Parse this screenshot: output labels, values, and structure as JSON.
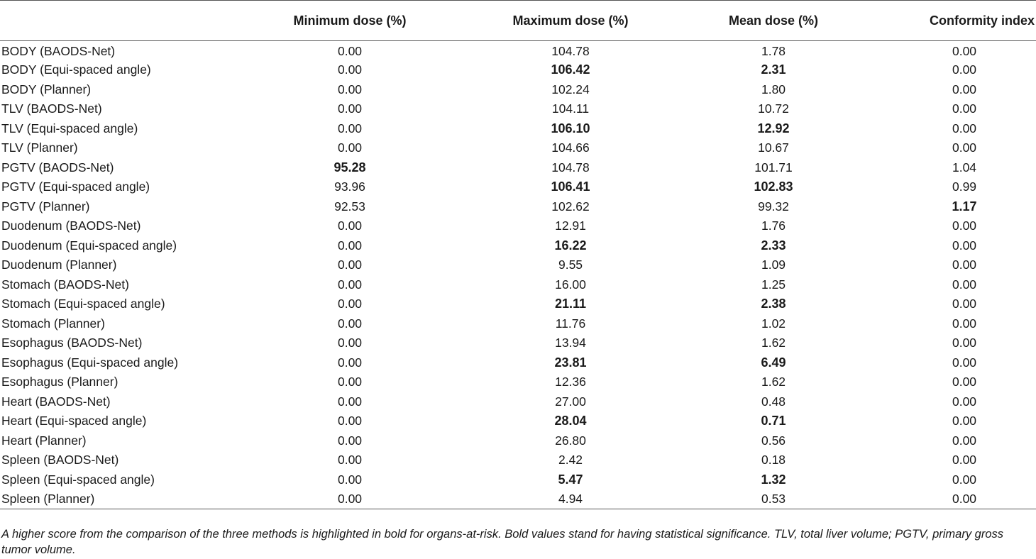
{
  "table": {
    "headers": [
      "",
      "Minimum dose (%)",
      "Maximum dose (%)",
      "Mean dose (%)",
      "Conformity index"
    ],
    "rows": [
      {
        "name": "BODY (BAODS-Net)",
        "min": "0.00",
        "max": "104.78",
        "mean": "1.78",
        "ci": "0.00",
        "bold": []
      },
      {
        "name": "BODY (Equi-spaced angle)",
        "min": "0.00",
        "max": "106.42",
        "mean": "2.31",
        "ci": "0.00",
        "bold": [
          "max",
          "mean"
        ]
      },
      {
        "name": "BODY (Planner)",
        "min": "0.00",
        "max": "102.24",
        "mean": "1.80",
        "ci": "0.00",
        "bold": []
      },
      {
        "name": "TLV (BAODS-Net)",
        "min": "0.00",
        "max": "104.11",
        "mean": "10.72",
        "ci": "0.00",
        "bold": []
      },
      {
        "name": "TLV (Equi-spaced angle)",
        "min": "0.00",
        "max": "106.10",
        "mean": "12.92",
        "ci": "0.00",
        "bold": [
          "max",
          "mean"
        ]
      },
      {
        "name": "TLV (Planner)",
        "min": "0.00",
        "max": "104.66",
        "mean": "10.67",
        "ci": "0.00",
        "bold": []
      },
      {
        "name": "PGTV (BAODS-Net)",
        "min": "95.28",
        "max": "104.78",
        "mean": "101.71",
        "ci": "1.04",
        "bold": [
          "min"
        ]
      },
      {
        "name": "PGTV (Equi-spaced angle)",
        "min": "93.96",
        "max": "106.41",
        "mean": "102.83",
        "ci": "0.99",
        "bold": [
          "max",
          "mean"
        ]
      },
      {
        "name": "PGTV (Planner)",
        "min": "92.53",
        "max": "102.62",
        "mean": "99.32",
        "ci": "1.17",
        "bold": [
          "ci"
        ]
      },
      {
        "name": "Duodenum (BAODS-Net)",
        "min": "0.00",
        "max": "12.91",
        "mean": "1.76",
        "ci": "0.00",
        "bold": []
      },
      {
        "name": "Duodenum (Equi-spaced angle)",
        "min": "0.00",
        "max": "16.22",
        "mean": "2.33",
        "ci": "0.00",
        "bold": [
          "max",
          "mean"
        ]
      },
      {
        "name": "Duodenum (Planner)",
        "min": "0.00",
        "max": "9.55",
        "mean": "1.09",
        "ci": "0.00",
        "bold": []
      },
      {
        "name": "Stomach (BAODS-Net)",
        "min": "0.00",
        "max": "16.00",
        "mean": "1.25",
        "ci": "0.00",
        "bold": []
      },
      {
        "name": "Stomach (Equi-spaced angle)",
        "min": "0.00",
        "max": "21.11",
        "mean": "2.38",
        "ci": "0.00",
        "bold": [
          "max",
          "mean"
        ]
      },
      {
        "name": "Stomach (Planner)",
        "min": "0.00",
        "max": "11.76",
        "mean": "1.02",
        "ci": "0.00",
        "bold": []
      },
      {
        "name": "Esophagus (BAODS-Net)",
        "min": "0.00",
        "max": "13.94",
        "mean": "1.62",
        "ci": "0.00",
        "bold": []
      },
      {
        "name": "Esophagus (Equi-spaced angle)",
        "min": "0.00",
        "max": "23.81",
        "mean": "6.49",
        "ci": "0.00",
        "bold": [
          "max",
          "mean"
        ]
      },
      {
        "name": "Esophagus (Planner)",
        "min": "0.00",
        "max": "12.36",
        "mean": "1.62",
        "ci": "0.00",
        "bold": []
      },
      {
        "name": "Heart (BAODS-Net)",
        "min": "0.00",
        "max": "27.00",
        "mean": "0.48",
        "ci": "0.00",
        "bold": []
      },
      {
        "name": "Heart (Equi-spaced angle)",
        "min": "0.00",
        "max": "28.04",
        "mean": "0.71",
        "ci": "0.00",
        "bold": [
          "max",
          "mean"
        ]
      },
      {
        "name": "Heart (Planner)",
        "min": "0.00",
        "max": "26.80",
        "mean": "0.56",
        "ci": "0.00",
        "bold": []
      },
      {
        "name": "Spleen (BAODS-Net)",
        "min": "0.00",
        "max": "2.42",
        "mean": "0.18",
        "ci": "0.00",
        "bold": []
      },
      {
        "name": "Spleen (Equi-spaced angle)",
        "min": "0.00",
        "max": "5.47",
        "mean": "1.32",
        "ci": "0.00",
        "bold": [
          "max",
          "mean"
        ]
      },
      {
        "name": "Spleen (Planner)",
        "min": "0.00",
        "max": "4.94",
        "mean": "0.53",
        "ci": "0.00",
        "bold": []
      }
    ]
  },
  "footnote": "A higher score from the comparison of the three methods is highlighted in bold for organs-at-risk. Bold values stand for having statistical significance. TLV, total liver volume; PGTV, primary gross tumor volume."
}
